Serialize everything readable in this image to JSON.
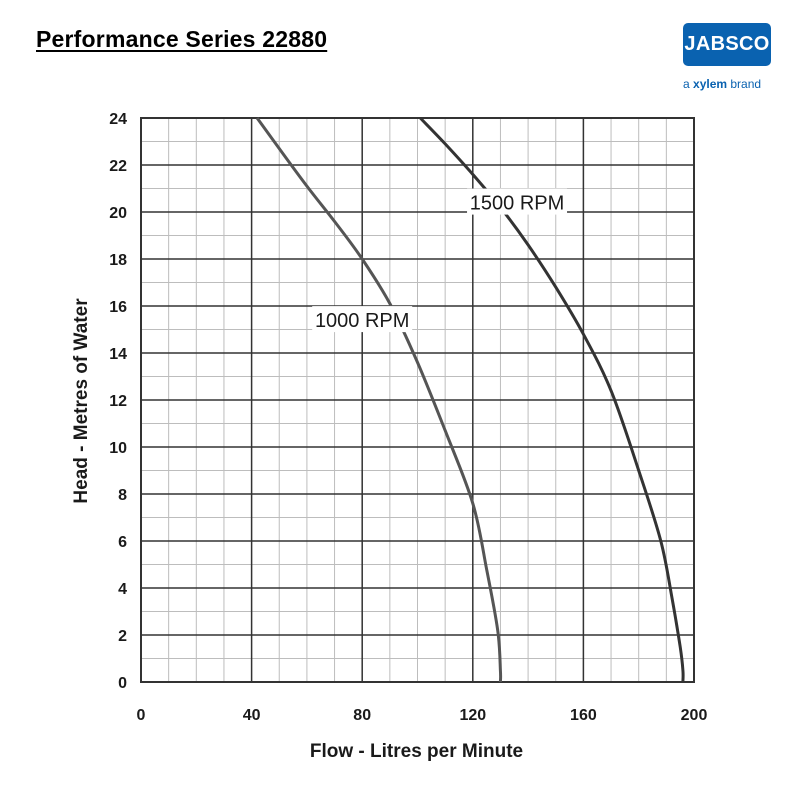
{
  "header": {
    "title": "Performance Series 22880"
  },
  "logo": {
    "badge_text": "JABSCO",
    "tagline_prefix": "a ",
    "tagline_brand": "xylem",
    "tagline_suffix": " brand",
    "color": "#0a62b0"
  },
  "chart_data": {
    "type": "line",
    "xlabel": "Flow - Litres per Minute",
    "ylabel": "Head - Metres of Water",
    "xlim": [
      0,
      200
    ],
    "ylim": [
      0,
      24
    ],
    "x_ticks": [
      0,
      40,
      80,
      120,
      160,
      200
    ],
    "y_ticks": [
      0,
      2,
      4,
      6,
      8,
      10,
      12,
      14,
      16,
      18,
      20,
      22,
      24
    ],
    "grid": true,
    "series": [
      {
        "name": "1000 RPM",
        "color": "#555555",
        "x": [
          42,
          50,
          60,
          70,
          80,
          90,
          100,
          110,
          120,
          125,
          129,
          130,
          130
        ],
        "y": [
          24,
          22.7,
          21.1,
          19.6,
          18.0,
          16.1,
          13.6,
          10.7,
          7.6,
          4.8,
          2.2,
          0.5,
          0
        ]
      },
      {
        "name": "1500 RPM",
        "color": "#333333",
        "x": [
          101,
          110,
          120,
          130,
          140,
          150,
          160,
          170,
          180,
          188,
          192,
          195,
          196,
          196
        ],
        "y": [
          24,
          22.9,
          21.6,
          20.2,
          18.6,
          16.8,
          14.8,
          12.4,
          9.0,
          6.0,
          3.6,
          1.5,
          0.5,
          0
        ]
      }
    ]
  }
}
